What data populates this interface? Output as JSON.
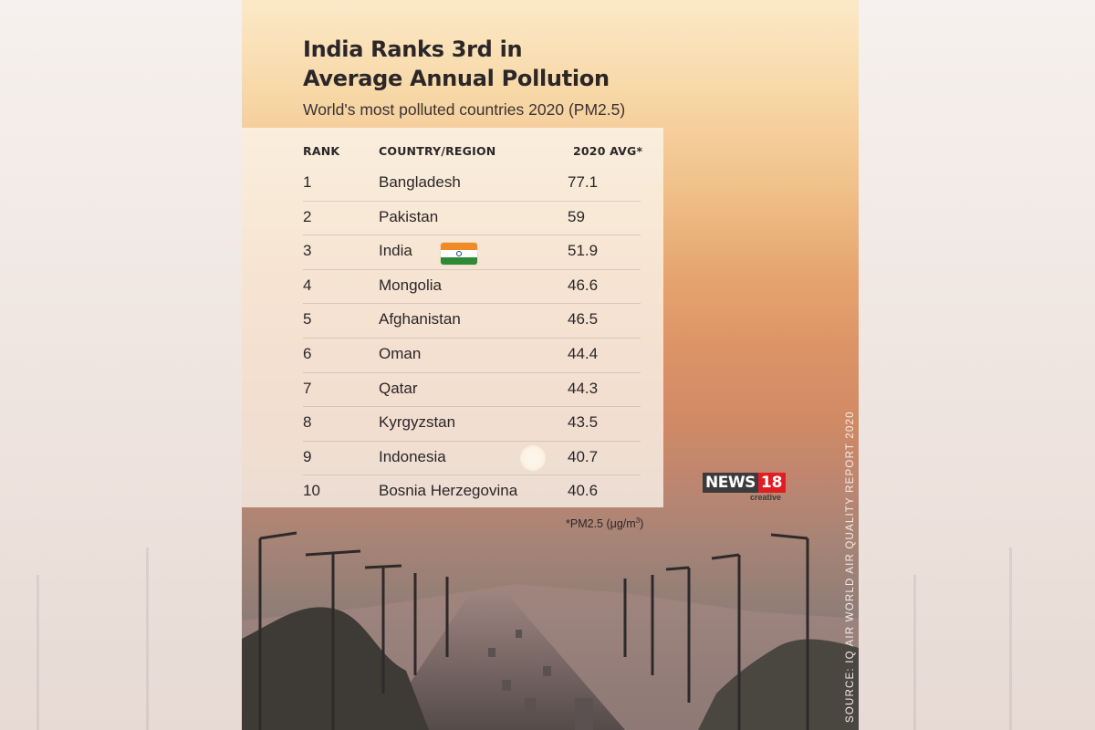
{
  "header": {
    "title_line1": "India Ranks 3rd in",
    "title_line2": "Average Annual Pollution",
    "subtitle": "World's most polluted countries 2020 (PM2.5)"
  },
  "table": {
    "columns": [
      "RANK",
      "COUNTRY/REGION",
      "2020 AVG*"
    ],
    "rows": [
      {
        "rank": "1",
        "country": "Bangladesh",
        "avg": "77.1"
      },
      {
        "rank": "2",
        "country": "Pakistan",
        "avg": "59"
      },
      {
        "rank": "3",
        "country": "India",
        "avg": "51.9",
        "flag": "india-flag-icon"
      },
      {
        "rank": "4",
        "country": "Mongolia",
        "avg": "46.6"
      },
      {
        "rank": "5",
        "country": "Afghanistan",
        "avg": "46.5"
      },
      {
        "rank": "6",
        "country": "Oman",
        "avg": "44.4"
      },
      {
        "rank": "7",
        "country": "Qatar",
        "avg": "44.3"
      },
      {
        "rank": "8",
        "country": "Kyrgyzstan",
        "avg": "43.5"
      },
      {
        "rank": "9",
        "country": "Indonesia",
        "avg": "40.7"
      },
      {
        "rank": "10",
        "country": "Bosnia Herzegovina",
        "avg": "40.6"
      }
    ]
  },
  "footnote": {
    "prefix": "*PM2.5",
    "unit": "(μg/m",
    "exp": "3",
    "close": ")"
  },
  "logo": {
    "news": "NEWS",
    "number": "18",
    "creative": "creative",
    "brand_red": "#e11d24"
  },
  "source": "SOURCE: IQ AIR WORLD AIR QUALITY REPORT 2020",
  "colors": {
    "sky_top": "#fbe9c7",
    "sky_mid": "#dc9366",
    "haze_bottom": "#6e6664",
    "text_dark": "#2b2628"
  }
}
